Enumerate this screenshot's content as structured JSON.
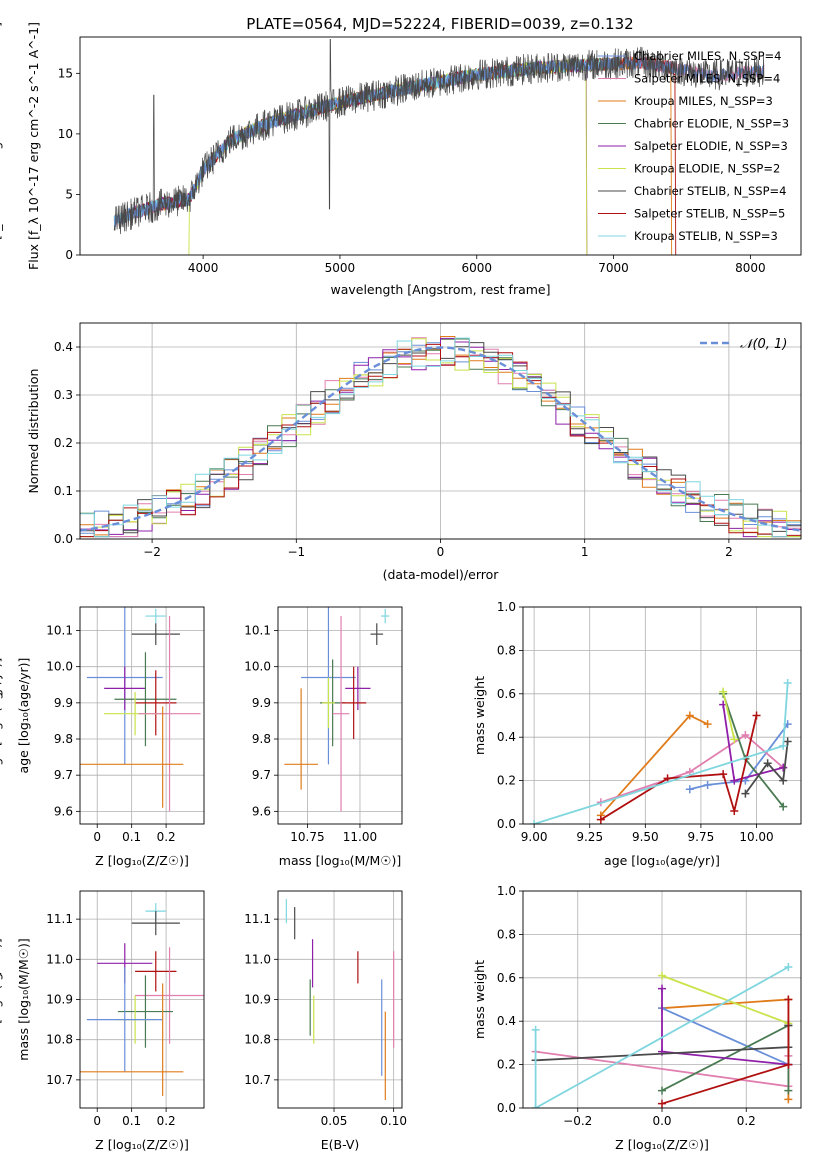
{
  "colors": {
    "chabrier_miles": "#6a8fd9",
    "salpeter_miles": "#e07fb0",
    "kroupa_miles": "#e07b1a",
    "chabrier_elodie": "#4a7a52",
    "salpeter_elodie": "#8f1fa8",
    "kroupa_elodie": "#c9e34a",
    "chabrier_stelib": "#4a4a4a",
    "salpeter_stelib": "#b01010",
    "kroupa_stelib": "#7fd6df",
    "gauss": "#6a8fd9"
  },
  "chart_data": [
    {
      "id": "spectrum",
      "type": "line",
      "title": "PLATE=0564, MJD=52224, FIBERID=0039, z=0.132",
      "xlabel": "wavelength [Angstrom, rest frame]",
      "ylabel": "Flux [f_λ 10^-17 erg cm^-2 s^-1 A^-1]",
      "xlim": [
        3100,
        8370
      ],
      "ylim": [
        0,
        18
      ],
      "xticks": [
        4000,
        5000,
        6000,
        7000,
        8000
      ],
      "yticks": [
        0,
        5,
        10,
        15
      ],
      "grid": false,
      "legend": "top-right",
      "continuum": {
        "x": [
          3350,
          3500,
          3700,
          3900,
          4000,
          4200,
          4500,
          5000,
          5500,
          6000,
          6500,
          7000,
          7200,
          7450,
          7700,
          8100
        ],
        "y": [
          2.8,
          3.5,
          4.2,
          4.6,
          7.0,
          9.5,
          11.0,
          12.6,
          13.8,
          14.9,
          15.5,
          15.8,
          15.9,
          15.4,
          14.8,
          15.2
        ]
      },
      "legend_entries": [
        {
          "label": "Chabrier MILES, N_SSP=4",
          "series": "chabrier_miles"
        },
        {
          "label": "Salpeter MILES, N_SSP=4",
          "series": "salpeter_miles"
        },
        {
          "label": "Kroupa MILES, N_SSP=3",
          "series": "kroupa_miles"
        },
        {
          "label": "Chabrier ELODIE, N_SSP=3",
          "series": "chabrier_elodie"
        },
        {
          "label": "Salpeter ELODIE, N_SSP=3",
          "series": "salpeter_elodie"
        },
        {
          "label": "Kroupa ELODIE, N_SSP=2",
          "series": "kroupa_elodie"
        },
        {
          "label": "Chabrier STELIB, N_SSP=4",
          "series": "chabrier_stelib"
        },
        {
          "label": "Salpeter STELIB, N_SSP=5",
          "series": "salpeter_stelib"
        },
        {
          "label": "Kroupa STELIB, N_SSP=3",
          "series": "kroupa_stelib"
        }
      ]
    },
    {
      "id": "residuals",
      "type": "line",
      "xlabel": "(data-model)/error",
      "ylabel": "Normed distribution",
      "xlim": [
        -2.5,
        2.5
      ],
      "ylim": [
        0,
        0.45
      ],
      "xticks": [
        -2,
        -1,
        0,
        1,
        2
      ],
      "yticks": [
        0.0,
        0.1,
        0.2,
        0.3,
        0.4
      ],
      "grid": true,
      "legend": "top-right",
      "gauss_label": "𝒩(0, 1)",
      "bins": {
        "start": -2.5,
        "width": 0.1,
        "count": 50
      }
    },
    {
      "id": "age_Z",
      "type": "scatter",
      "xlabel": "Z [log₁₀(Z/Z☉)]",
      "ylabel": "age  [log₁₀(age/yr)]",
      "xlim": [
        -0.05,
        0.31
      ],
      "ylim": [
        9.565,
        10.165
      ],
      "xticks": [
        0.0,
        0.1,
        0.2
      ],
      "yticks": [
        9.6,
        9.7,
        9.8,
        9.9,
        10.0,
        10.1
      ],
      "grid": true,
      "points": [
        {
          "series": "kroupa_stelib",
          "x": 0.17,
          "xerr": 0.03,
          "y": 10.14,
          "yerr": 0.02
        },
        {
          "series": "chabrier_stelib",
          "x": 0.17,
          "xerr": 0.07,
          "y": 10.09,
          "yerr": 0.03
        },
        {
          "series": "chabrier_miles",
          "x": 0.08,
          "xerr": 0.11,
          "y": 9.97,
          "yerr": 0.24
        },
        {
          "series": "salpeter_elodie",
          "x": 0.08,
          "xerr": 0.06,
          "y": 9.94,
          "yerr": 0.06
        },
        {
          "series": "chabrier_elodie",
          "x": 0.14,
          "xerr": 0.09,
          "y": 9.91,
          "yerr": 0.13
        },
        {
          "series": "salpeter_stelib",
          "x": 0.17,
          "xerr": 0.06,
          "y": 9.9,
          "yerr": 0.09
        },
        {
          "series": "kroupa_elodie",
          "x": 0.11,
          "xerr": 0.09,
          "y": 9.87,
          "yerr": 0.06
        },
        {
          "series": "salpeter_miles",
          "x": 0.21,
          "xerr": 0.09,
          "y": 9.87,
          "yerr": 0.27
        },
        {
          "series": "kroupa_miles",
          "x": 0.08,
          "xerr": 0.17,
          "y": 9.73,
          "yerr": 0.0
        },
        {
          "series": "kroupa_miles",
          "x": 0.19,
          "xerr": 0.0,
          "y": 9.75,
          "yerr": 0.14
        }
      ]
    },
    {
      "id": "age_mass",
      "type": "scatter",
      "xlabel": "mass [log₁₀(M/M☉)]",
      "xlim": [
        10.61,
        11.2
      ],
      "ylim": [
        9.565,
        10.165
      ],
      "xticks": [
        10.75,
        11.0
      ],
      "xticklabels": [
        "10.75",
        "11.00"
      ],
      "yticks": [
        9.6,
        9.7,
        9.8,
        9.9,
        10.0,
        10.1
      ],
      "grid": true,
      "points": [
        {
          "series": "kroupa_stelib",
          "x": 11.12,
          "xerr": 0.02,
          "y": 10.14,
          "yerr": 0.02
        },
        {
          "series": "chabrier_stelib",
          "x": 11.08,
          "xerr": 0.03,
          "y": 10.09,
          "yerr": 0.03
        },
        {
          "series": "chabrier_miles",
          "x": 10.85,
          "xerr": 0.13,
          "y": 9.97,
          "yerr": 0.24
        },
        {
          "series": "salpeter_elodie",
          "x": 10.99,
          "xerr": 0.06,
          "y": 9.94,
          "yerr": 0.06
        },
        {
          "series": "chabrier_elodie",
          "x": 10.87,
          "xerr": 0.06,
          "y": 9.9,
          "yerr": 0.12
        },
        {
          "series": "salpeter_stelib",
          "x": 10.97,
          "xerr": 0.06,
          "y": 9.9,
          "yerr": 0.1
        },
        {
          "series": "salpeter_miles",
          "x": 10.91,
          "xerr": 0.04,
          "y": 9.87,
          "yerr": 0.27
        },
        {
          "series": "kroupa_miles",
          "x": 10.72,
          "xerr": 0.08,
          "y": 9.73,
          "yerr": 0.0
        },
        {
          "series": "kroupa_miles",
          "x": 10.72,
          "xerr": 0.0,
          "y": 9.8,
          "yerr": 0.14
        },
        {
          "series": "kroupa_elodie",
          "x": 10.85,
          "xerr": 0.03,
          "y": 9.9,
          "yerr": 0.07
        }
      ]
    },
    {
      "id": "weight_age",
      "type": "line",
      "xlabel": "age  [log₁₀(age/yr)]",
      "ylabel": "mass weight",
      "xlim": [
        8.95,
        10.2
      ],
      "ylim": [
        0,
        1.0
      ],
      "xticks": [
        9.0,
        9.25,
        9.5,
        9.75,
        10.0
      ],
      "xticklabels": [
        "9.00",
        "9.25",
        "9.50",
        "9.75",
        "10.00"
      ],
      "yticks": [
        0.0,
        0.2,
        0.4,
        0.6,
        0.8,
        1.0
      ],
      "grid": true,
      "series": [
        {
          "series": "kroupa_miles",
          "x": [
            9.3,
            9.7,
            9.78
          ],
          "y": [
            0.04,
            0.5,
            0.46
          ]
        },
        {
          "series": "chabrier_miles",
          "x": [
            9.7,
            9.78,
            9.95,
            10.14
          ],
          "y": [
            0.16,
            0.18,
            0.2,
            0.46
          ]
        },
        {
          "series": "salpeter_miles",
          "x": [
            9.3,
            9.7,
            9.95,
            10.12
          ],
          "y": [
            0.1,
            0.24,
            0.41,
            0.26
          ]
        },
        {
          "series": "chabrier_elodie",
          "x": [
            9.85,
            9.95,
            10.12
          ],
          "y": [
            0.6,
            0.3,
            0.08
          ]
        },
        {
          "series": "salpeter_elodie",
          "x": [
            9.85,
            9.9,
            10.12
          ],
          "y": [
            0.55,
            0.2,
            0.26
          ]
        },
        {
          "series": "kroupa_elodie",
          "x": [
            9.85,
            9.9
          ],
          "y": [
            0.61,
            0.39
          ]
        },
        {
          "series": "chabrier_stelib",
          "x": [
            9.95,
            10.05,
            10.12,
            10.14
          ],
          "y": [
            0.14,
            0.28,
            0.2,
            0.38
          ]
        },
        {
          "series": "salpeter_stelib",
          "x": [
            9.3,
            9.6,
            9.85,
            9.9,
            10.0
          ],
          "y": [
            0.02,
            0.21,
            0.23,
            0.06,
            0.5
          ]
        },
        {
          "series": "kroupa_stelib",
          "x": [
            9.0,
            10.12,
            10.14
          ],
          "y": [
            0.0,
            0.36,
            0.65
          ]
        }
      ]
    },
    {
      "id": "mass_Z",
      "type": "scatter",
      "xlabel": "Z [log₁₀(Z/Z☉)]",
      "ylabel": "mass [log₁₀(M/M☉)]",
      "xlim": [
        -0.05,
        0.31
      ],
      "ylim": [
        10.63,
        11.17
      ],
      "xticks": [
        0.0,
        0.1,
        0.2
      ],
      "yticks": [
        10.7,
        10.8,
        10.9,
        11.0,
        11.1
      ],
      "grid": true,
      "points": [
        {
          "series": "kroupa_stelib",
          "x": 0.17,
          "xerr": 0.03,
          "y": 11.12,
          "yerr": 0.02
        },
        {
          "series": "chabrier_stelib",
          "x": 0.17,
          "xerr": 0.07,
          "y": 11.09,
          "yerr": 0.03
        },
        {
          "series": "salpeter_elodie",
          "x": 0.08,
          "xerr": 0.08,
          "y": 10.99,
          "yerr": 0.05
        },
        {
          "series": "salpeter_stelib",
          "x": 0.17,
          "xerr": 0.06,
          "y": 10.97,
          "yerr": 0.05
        },
        {
          "series": "salpeter_miles",
          "x": 0.21,
          "xerr": 0.1,
          "y": 10.91,
          "yerr": 0.12
        },
        {
          "series": "chabrier_elodie",
          "x": 0.14,
          "xerr": 0.08,
          "y": 10.87,
          "yerr": 0.09
        },
        {
          "series": "kroupa_elodie",
          "x": 0.11,
          "xerr": 0.06,
          "y": 10.85,
          "yerr": 0.06
        },
        {
          "series": "chabrier_miles",
          "x": 0.08,
          "xerr": 0.11,
          "y": 10.85,
          "yerr": 0.13
        },
        {
          "series": "kroupa_miles",
          "x": 0.08,
          "xerr": 0.17,
          "y": 10.72,
          "yerr": 0.0
        },
        {
          "series": "kroupa_miles",
          "x": 0.19,
          "xerr": 0.0,
          "y": 10.8,
          "yerr": 0.14
        }
      ]
    },
    {
      "id": "mass_ebv",
      "type": "scatter",
      "xlabel": "E(B-V)",
      "xlim": [
        0.003,
        0.107
      ],
      "ylim": [
        10.63,
        11.17
      ],
      "xticks": [
        0.05,
        0.1
      ],
      "xticklabels": [
        "0.05",
        "0.10"
      ],
      "yticks": [
        10.7,
        10.8,
        10.9,
        11.0,
        11.1
      ],
      "grid": true,
      "points": [
        {
          "series": "kroupa_stelib",
          "x": 0.01,
          "y": 11.12,
          "yerr": 0.03
        },
        {
          "series": "chabrier_stelib",
          "x": 0.017,
          "y": 11.09,
          "yerr": 0.04
        },
        {
          "series": "salpeter_elodie",
          "x": 0.032,
          "y": 10.99,
          "yerr": 0.06
        },
        {
          "series": "chabrier_elodie",
          "x": 0.03,
          "y": 10.88,
          "yerr": 0.07
        },
        {
          "series": "kroupa_elodie",
          "x": 0.033,
          "y": 10.85,
          "yerr": 0.06
        },
        {
          "series": "salpeter_stelib",
          "x": 0.07,
          "y": 10.98,
          "yerr": 0.04
        },
        {
          "series": "chabrier_miles",
          "x": 0.09,
          "y": 10.83,
          "yerr": 0.12
        },
        {
          "series": "kroupa_miles",
          "x": 0.093,
          "y": 10.76,
          "yerr": 0.11
        },
        {
          "series": "salpeter_miles",
          "x": 0.1,
          "y": 10.9,
          "yerr": 0.12
        }
      ]
    },
    {
      "id": "weight_Z",
      "type": "line",
      "xlabel": "Z [log₁₀(Z/Z☉)]",
      "ylabel": "mass weight",
      "xlim": [
        -0.33,
        0.33
      ],
      "ylim": [
        0,
        1.0
      ],
      "xticks": [
        -0.2,
        0.0,
        0.2
      ],
      "xticklabels": [
        "−0.2",
        "0.0",
        "0.2"
      ],
      "yticks": [
        0.0,
        0.2,
        0.4,
        0.6,
        0.8,
        1.0
      ],
      "grid": true,
      "series": [
        {
          "series": "kroupa_miles",
          "x": [
            0.0,
            0.3,
            0.3
          ],
          "y": [
            0.46,
            0.5,
            0.04
          ]
        },
        {
          "series": "chabrier_miles",
          "x": [
            0.0,
            0.3,
            0.3
          ],
          "y": [
            0.46,
            0.2,
            0.2
          ]
        },
        {
          "series": "salpeter_miles",
          "x": [
            -0.3,
            0.3,
            0.3
          ],
          "y": [
            0.26,
            0.1,
            0.24
          ]
        },
        {
          "series": "chabrier_elodie",
          "x": [
            0.0,
            0.3,
            0.3
          ],
          "y": [
            0.08,
            0.38,
            0.08
          ]
        },
        {
          "series": "salpeter_elodie",
          "x": [
            0.0,
            0.0,
            0.3
          ],
          "y": [
            0.55,
            0.26,
            0.2
          ]
        },
        {
          "series": "kroupa_elodie",
          "x": [
            0.0,
            0.3
          ],
          "y": [
            0.61,
            0.39
          ]
        },
        {
          "series": "chabrier_stelib",
          "x": [
            -0.3,
            0.3,
            0.3
          ],
          "y": [
            0.22,
            0.28,
            0.38
          ]
        },
        {
          "series": "salpeter_stelib",
          "x": [
            0.0,
            0.3,
            0.3
          ],
          "y": [
            0.02,
            0.2,
            0.5
          ]
        },
        {
          "series": "kroupa_stelib",
          "x": [
            -0.3,
            -0.3,
            0.3
          ],
          "y": [
            0.36,
            0.0,
            0.65
          ]
        }
      ]
    }
  ]
}
